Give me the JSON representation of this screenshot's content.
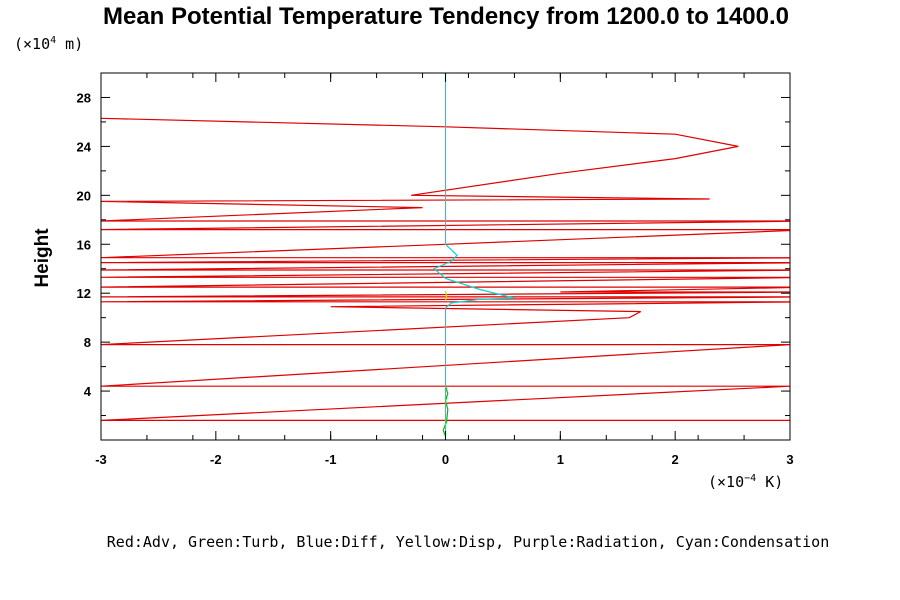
{
  "chart_data": {
    "type": "line",
    "title": "Mean Potential Temperature Tendency from 1200.0 to 1400.0",
    "ylabel": "Height",
    "y_unit": {
      "prefix": "(×10",
      "exp": "4",
      "suffix": " m)"
    },
    "x_unit": {
      "prefix": "(×10",
      "exp": "−4",
      "suffix": " K)"
    },
    "xlim": [
      -3,
      3
    ],
    "ylim": [
      0,
      30
    ],
    "x_ticks": [
      -3,
      -2,
      -1,
      0,
      1,
      2,
      3
    ],
    "y_ticks": [
      4,
      8,
      12,
      16,
      20,
      24,
      28
    ],
    "grid": false,
    "legend_text": "Red:Adv, Green:Turb, Blue:Diff, Yellow:Disp, Purple:Radiation, Cyan:Condensation",
    "colors": {
      "Adv": "#e00000",
      "Turb": "#00c000",
      "Condensation": "#00d8d8",
      "Disp": "#d8d800",
      "axes": "#000000"
    },
    "series": [
      {
        "name": "Adv",
        "color": "#e00000",
        "x": [
          3.2,
          -3.0,
          3.0,
          -3.0,
          3.0,
          -3.0,
          1.6,
          1.7,
          -1.0,
          3.2,
          -3.0,
          3.2,
          -3.0,
          3.2,
          1.0,
          3.2,
          -3.0,
          3.2,
          -3.0,
          3.2,
          -3.0,
          3.2,
          -3.0,
          3.2,
          -3.0,
          0.0,
          3.2,
          -3.0,
          3.2,
          -3.0,
          -0.2,
          -3.0,
          2.3,
          -0.3,
          1.0,
          2.0,
          2.55,
          2.0,
          0.0,
          -3.0
        ],
        "y": [
          1.6,
          1.6,
          4.4,
          4.4,
          7.8,
          7.8,
          10.0,
          10.5,
          10.9,
          11.3,
          11.3,
          11.7,
          11.7,
          12.1,
          12.1,
          12.5,
          12.5,
          13.3,
          13.3,
          13.9,
          13.9,
          14.5,
          14.5,
          14.9,
          14.9,
          16.0,
          17.2,
          17.2,
          17.9,
          17.9,
          19.0,
          19.5,
          19.7,
          20.0,
          21.8,
          23.0,
          24.0,
          25.0,
          25.6,
          26.3
        ]
      },
      {
        "name": "Turb",
        "color": "#00c000",
        "x": [
          0.0,
          -0.02,
          0.01,
          0.02,
          0.0,
          0.02,
          0.0
        ],
        "y": [
          0.3,
          0.8,
          1.5,
          2.5,
          3.2,
          3.8,
          4.4
        ]
      },
      {
        "name": "Condensation",
        "color": "#00d8d8",
        "x": [
          0.0,
          0.0,
          0.05,
          0.3,
          0.6,
          0.3,
          0.0,
          -0.1,
          0.05,
          0.1,
          0.0,
          0.0
        ],
        "y": [
          0.0,
          10.8,
          11.2,
          11.5,
          11.6,
          12.3,
          13.2,
          14.0,
          14.6,
          15.1,
          16.0,
          30.0
        ]
      },
      {
        "name": "Disp",
        "color": "#d8d800",
        "x": [
          0.0,
          0.01,
          0.0
        ],
        "y": [
          11.4,
          11.8,
          12.2
        ]
      }
    ]
  }
}
